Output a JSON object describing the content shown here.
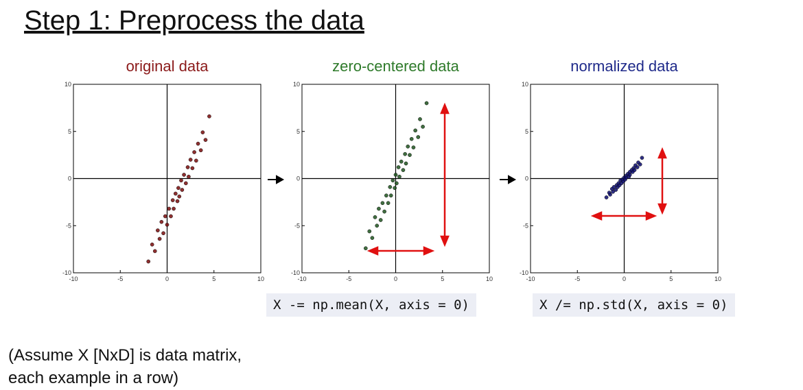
{
  "slide": {
    "title": "Step 1: Preprocess the data",
    "code": [
      "X -= np.mean(X, axis = 0)",
      "X /= np.std(X, axis = 0)"
    ],
    "note": [
      "(Assume X [NxD] is data matrix,",
      "each example in a row)"
    ]
  },
  "chart_data": [
    {
      "type": "scatter",
      "title": "original data",
      "title_color": "#8b1a1a",
      "color": "#7a0a0a",
      "x": [
        -2.0,
        -1.6,
        -1.3,
        -1.0,
        -0.8,
        -0.6,
        -0.4,
        -0.2,
        0,
        0.2,
        0.4,
        0.6,
        0.7,
        0.9,
        1.1,
        1.2,
        1.3,
        1.5,
        1.6,
        1.8,
        2.0,
        2.2,
        2.3,
        2.5,
        2.7,
        2.9,
        3.1,
        3.3,
        3.6,
        3.8,
        4.1,
        4.5
      ],
      "y": [
        -8.8,
        -7.0,
        -7.7,
        -5.5,
        -6.4,
        -4.6,
        -5.8,
        -4.0,
        -4.9,
        -3.2,
        -4.0,
        -2.3,
        -3.2,
        -1.6,
        -2.4,
        -1.0,
        -1.9,
        -0.2,
        -1.2,
        0.4,
        -0.5,
        1.2,
        0.2,
        2.0,
        1.1,
        2.8,
        1.9,
        3.7,
        3.0,
        4.9,
        4.1,
        6.6
      ],
      "xlim": [
        -10,
        10
      ],
      "ylim": [
        -10,
        10
      ],
      "xticks": [
        -10,
        -5,
        0,
        5,
        10
      ],
      "yticks": [
        -10,
        -5,
        0,
        5,
        10
      ]
    },
    {
      "type": "scatter",
      "title": "zero-centered data",
      "title_color": "#2e7a2a",
      "color": "#1e551e",
      "x": [
        -3.2,
        -2.8,
        -2.5,
        -2.2,
        -2.0,
        -1.8,
        -1.6,
        -1.4,
        -1.2,
        -1.0,
        -0.8,
        -0.6,
        -0.5,
        -0.3,
        -0.1,
        0,
        0.1,
        0.3,
        0.4,
        0.6,
        0.8,
        1.0,
        1.1,
        1.3,
        1.5,
        1.7,
        1.9,
        2.1,
        2.4,
        2.6,
        2.9,
        3.3
      ],
      "y": [
        -7.4,
        -5.6,
        -6.3,
        -4.1,
        -5.0,
        -3.2,
        -4.4,
        -2.6,
        -3.5,
        -1.8,
        -2.6,
        -0.9,
        -1.8,
        -0.2,
        -1.0,
        0.4,
        -0.5,
        1.2,
        0.2,
        1.8,
        0.9,
        2.6,
        1.6,
        3.4,
        2.5,
        4.2,
        3.3,
        5.1,
        4.4,
        6.3,
        5.5,
        8.0
      ],
      "xlim": [
        -10,
        10
      ],
      "ylim": [
        -10,
        10
      ],
      "xticks": [
        -10,
        -5,
        0,
        5,
        10
      ],
      "yticks": [
        -10,
        -5,
        0,
        5,
        10
      ]
    },
    {
      "type": "scatter",
      "title": "normalized data",
      "title_color": "#1f2a8a",
      "color": "#0a0a6e",
      "x": [
        -1.9,
        -1.6,
        -1.5,
        -1.3,
        -1.2,
        -1.1,
        -0.9,
        -0.8,
        -0.7,
        -0.6,
        -0.5,
        -0.4,
        -0.3,
        -0.2,
        -0.1,
        0,
        0.1,
        0.2,
        0.2,
        0.4,
        0.5,
        0.6,
        0.6,
        0.8,
        0.9,
        1.0,
        1.1,
        1.2,
        1.4,
        1.5,
        1.7,
        1.9
      ],
      "y": [
        -2.0,
        -1.5,
        -1.7,
        -1.1,
        -1.4,
        -0.9,
        -1.2,
        -0.7,
        -0.9,
        -0.5,
        -0.7,
        -0.2,
        -0.5,
        -0.1,
        -0.3,
        0.1,
        -0.1,
        0.3,
        0.1,
        0.5,
        0.2,
        0.7,
        0.4,
        0.9,
        0.7,
        1.1,
        0.9,
        1.4,
        1.2,
        1.7,
        1.5,
        2.2
      ],
      "xlim": [
        -10,
        10
      ],
      "ylim": [
        -10,
        10
      ],
      "xticks": [
        -10,
        -5,
        0,
        5,
        10
      ],
      "yticks": [
        -10,
        -5,
        0,
        5,
        10
      ]
    }
  ]
}
